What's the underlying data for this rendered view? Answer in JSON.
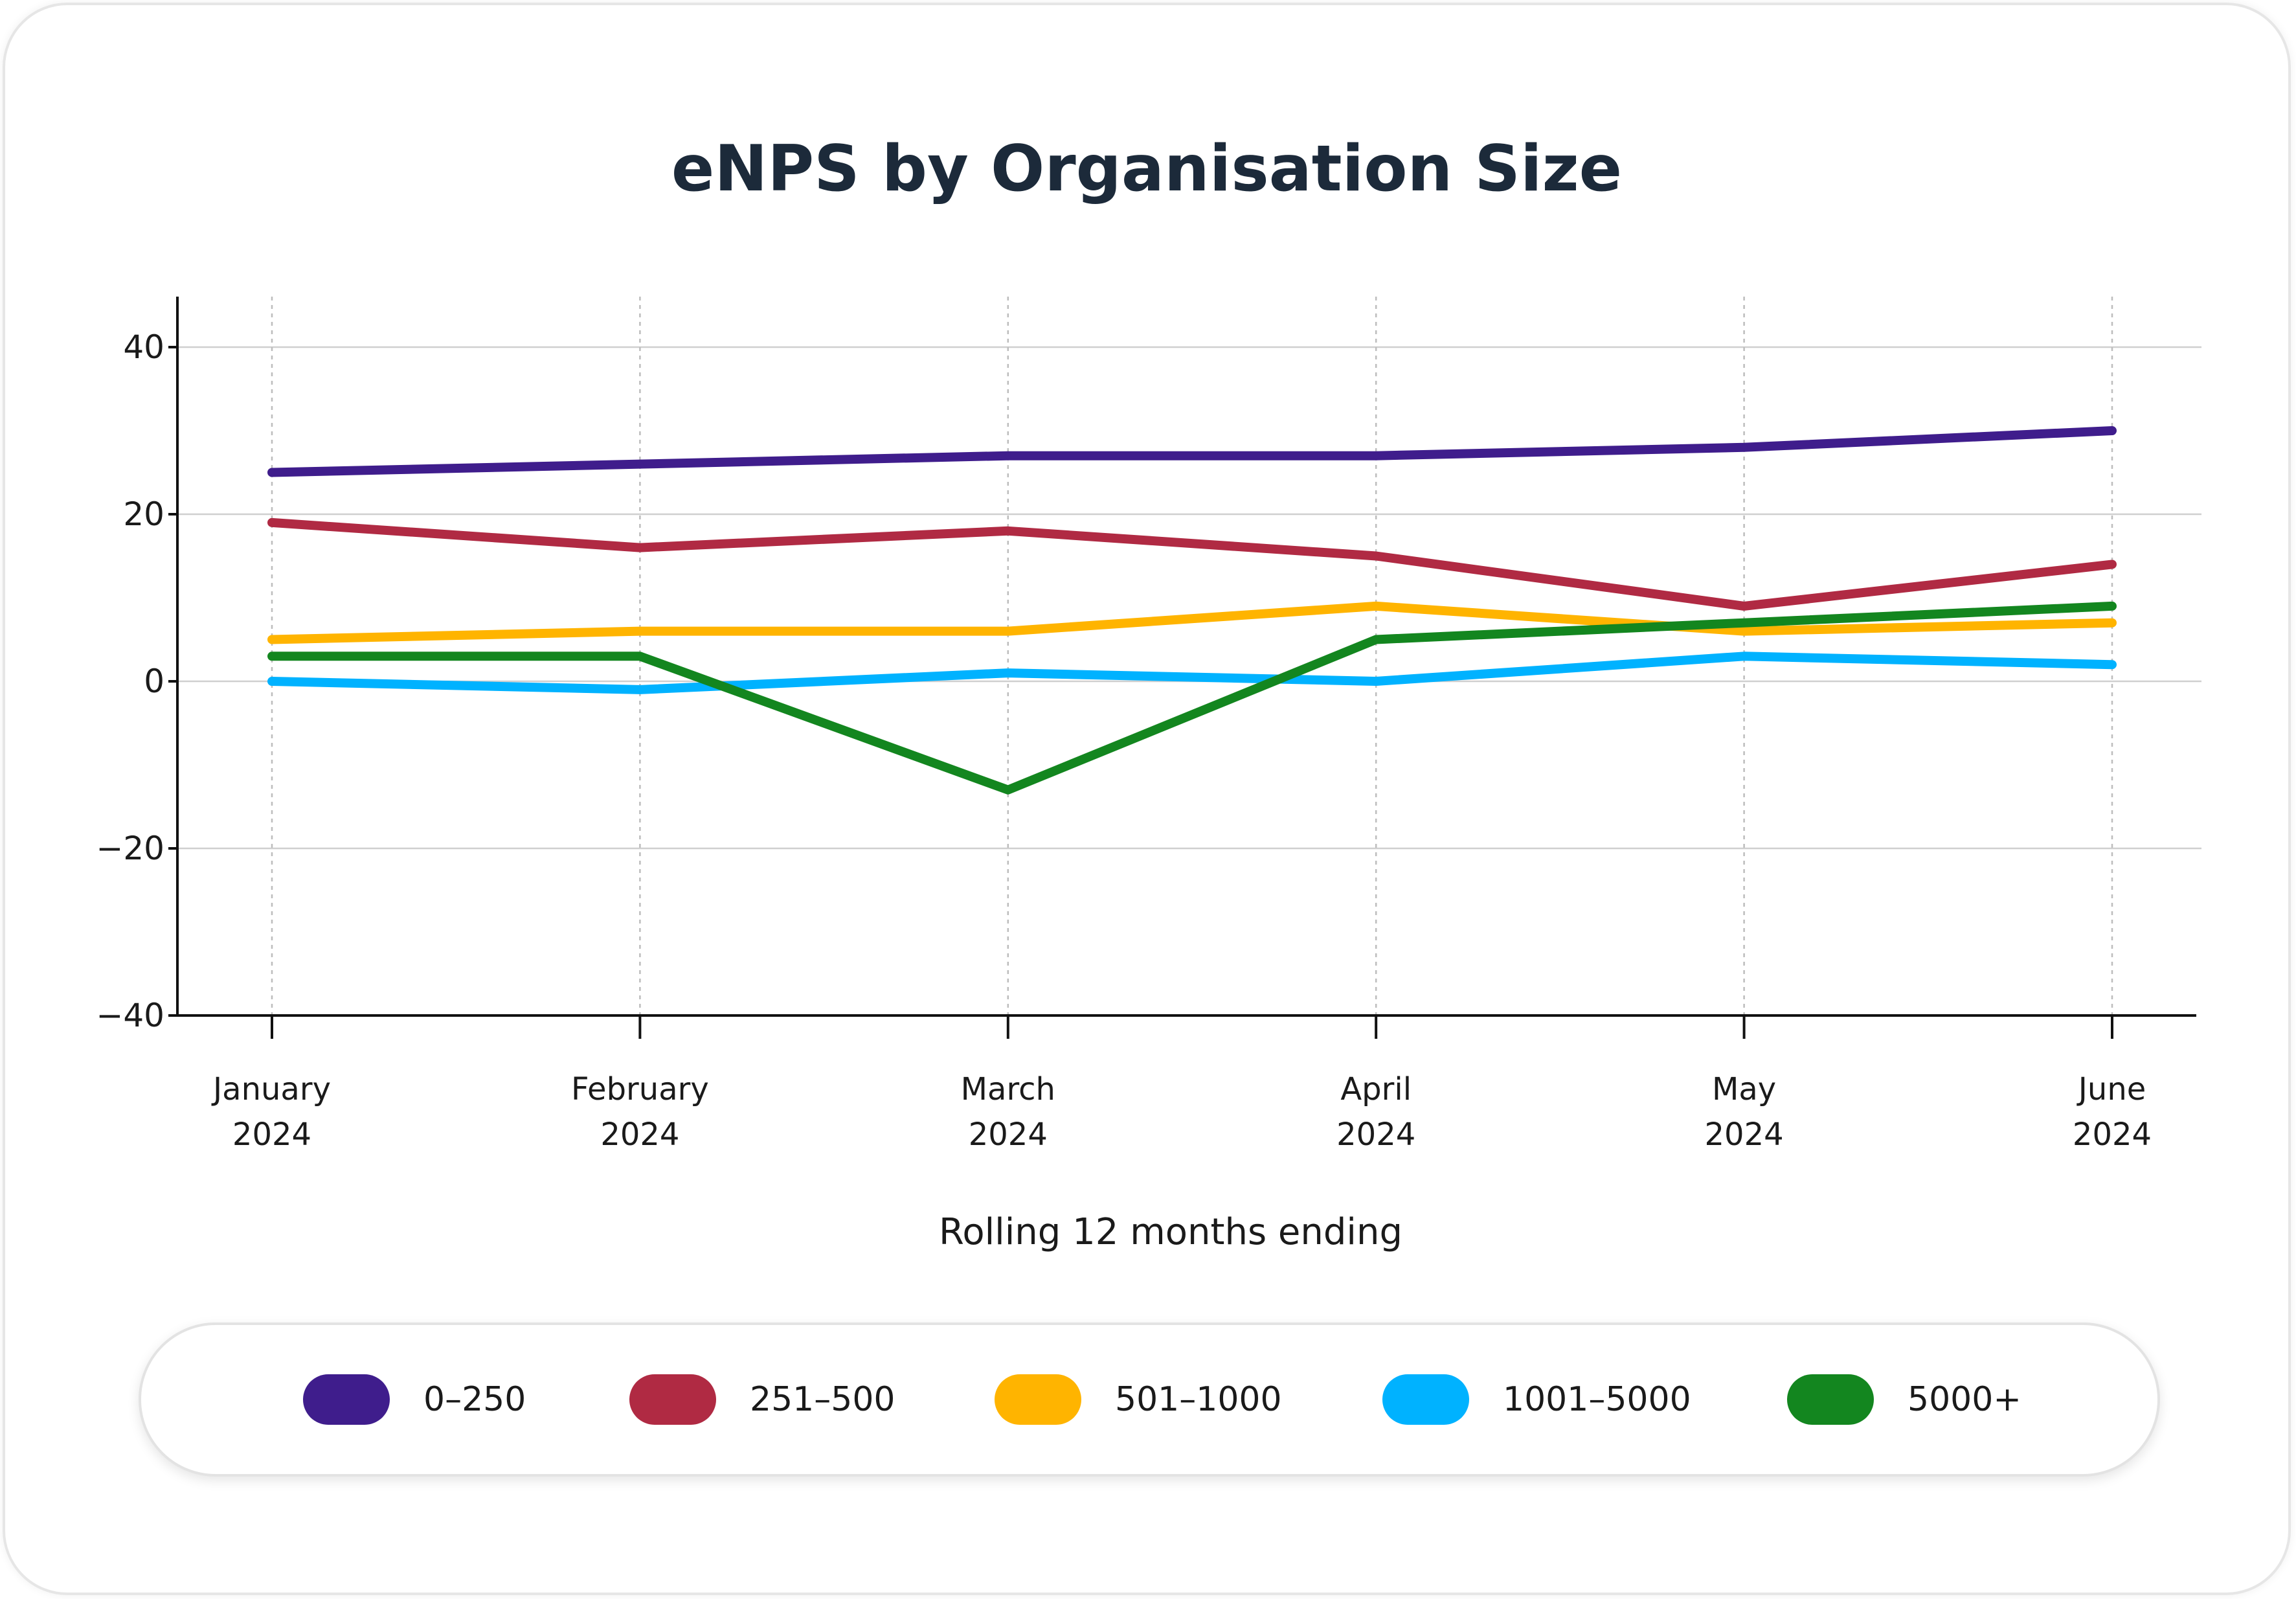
{
  "chart_data": {
    "type": "line",
    "title": "eNPS by Organisation Size",
    "xlabel": "Rolling 12 months ending",
    "ylabel": "",
    "categories": [
      [
        "January",
        "2024"
      ],
      [
        "February",
        "2024"
      ],
      [
        "March",
        "2024"
      ],
      [
        "April",
        "2024"
      ],
      [
        "May",
        "2024"
      ],
      [
        "June",
        "2024"
      ]
    ],
    "ylim": [
      -40,
      46
    ],
    "yticks": [
      40,
      20,
      0,
      -20,
      -40
    ],
    "ytick_labels": [
      "40",
      "20",
      "0",
      "−20",
      "−40"
    ],
    "grid": "horizontal-solid-and-vertical-dotted",
    "legend": "bottom",
    "series": [
      {
        "name": "0–250",
        "color": "#3f1d8c",
        "values": [
          25,
          26,
          27,
          27,
          28,
          30
        ]
      },
      {
        "name": "251–500",
        "color": "#b02a43",
        "values": [
          19,
          16,
          18,
          15,
          9,
          14
        ]
      },
      {
        "name": "501–1000",
        "color": "#ffb400",
        "values": [
          5,
          6,
          6,
          9,
          6,
          7
        ]
      },
      {
        "name": "1001–5000",
        "color": "#00b2ff",
        "values": [
          0,
          -1,
          1,
          0,
          3,
          2
        ]
      },
      {
        "name": "5000+",
        "color": "#13861f",
        "values": [
          3,
          3,
          -13,
          5,
          7,
          9
        ]
      }
    ]
  }
}
